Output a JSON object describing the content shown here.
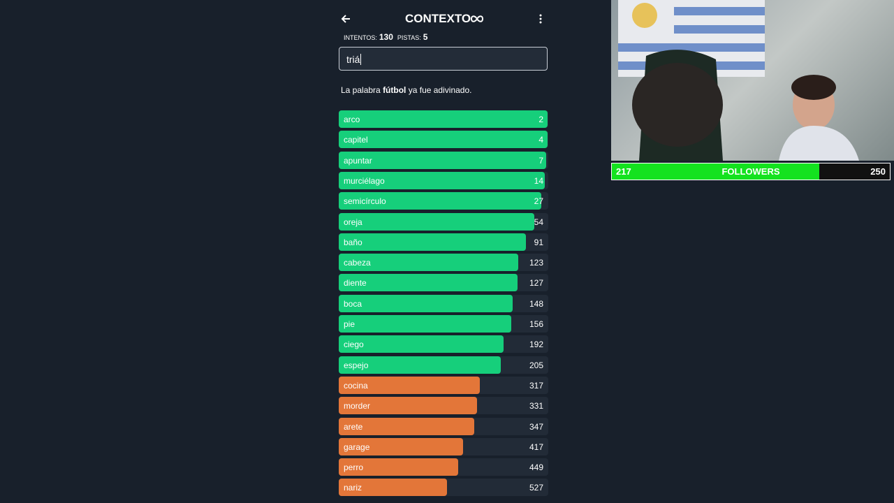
{
  "header": {
    "title": "CONTEXTO",
    "stats": [
      {
        "label": "INTENTOS:",
        "value": 130
      },
      {
        "label": "PISTAS:",
        "value": 5
      }
    ]
  },
  "input": {
    "text": "triá"
  },
  "message": {
    "before": "La palabra",
    "word": "fútbol",
    "after": "ya fue adivinado."
  },
  "guesses": [
    {
      "word": "arco",
      "rank": 2,
      "color": "#16cf7b"
    },
    {
      "word": "capitel",
      "rank": 4,
      "color": "#16cf7b"
    },
    {
      "word": "apuntar",
      "rank": 7,
      "color": "#16cf7b"
    },
    {
      "word": "murciélago",
      "rank": 14,
      "color": "#16cf7b"
    },
    {
      "word": "semicírculo",
      "rank": 27,
      "color": "#16cf7b"
    },
    {
      "word": "oreja",
      "rank": 54,
      "color": "#16cf7b"
    },
    {
      "word": "baño",
      "rank": 91,
      "color": "#16cf7b"
    },
    {
      "word": "cabeza",
      "rank": 123,
      "color": "#16cf7b"
    },
    {
      "word": "diente",
      "rank": 127,
      "color": "#16cf7b"
    },
    {
      "word": "boca",
      "rank": 148,
      "color": "#16cf7b"
    },
    {
      "word": "pie",
      "rank": 156,
      "color": "#16cf7b"
    },
    {
      "word": "ciego",
      "rank": 192,
      "color": "#16cf7b"
    },
    {
      "word": "espejo",
      "rank": 205,
      "color": "#16cf7b"
    },
    {
      "word": "cocina",
      "rank": 317,
      "color": "#e37639"
    },
    {
      "word": "morder",
      "rank": 331,
      "color": "#e37639"
    },
    {
      "word": "arete",
      "rank": 347,
      "color": "#e37639"
    },
    {
      "word": "garage",
      "rank": 417,
      "color": "#e37639"
    },
    {
      "word": "perro",
      "rank": 449,
      "color": "#e37639"
    },
    {
      "word": "nariz",
      "rank": 527,
      "color": "#e37639"
    }
  ],
  "overlay": {
    "current": 217,
    "label": "FOLLOWERS",
    "goal": 250
  }
}
